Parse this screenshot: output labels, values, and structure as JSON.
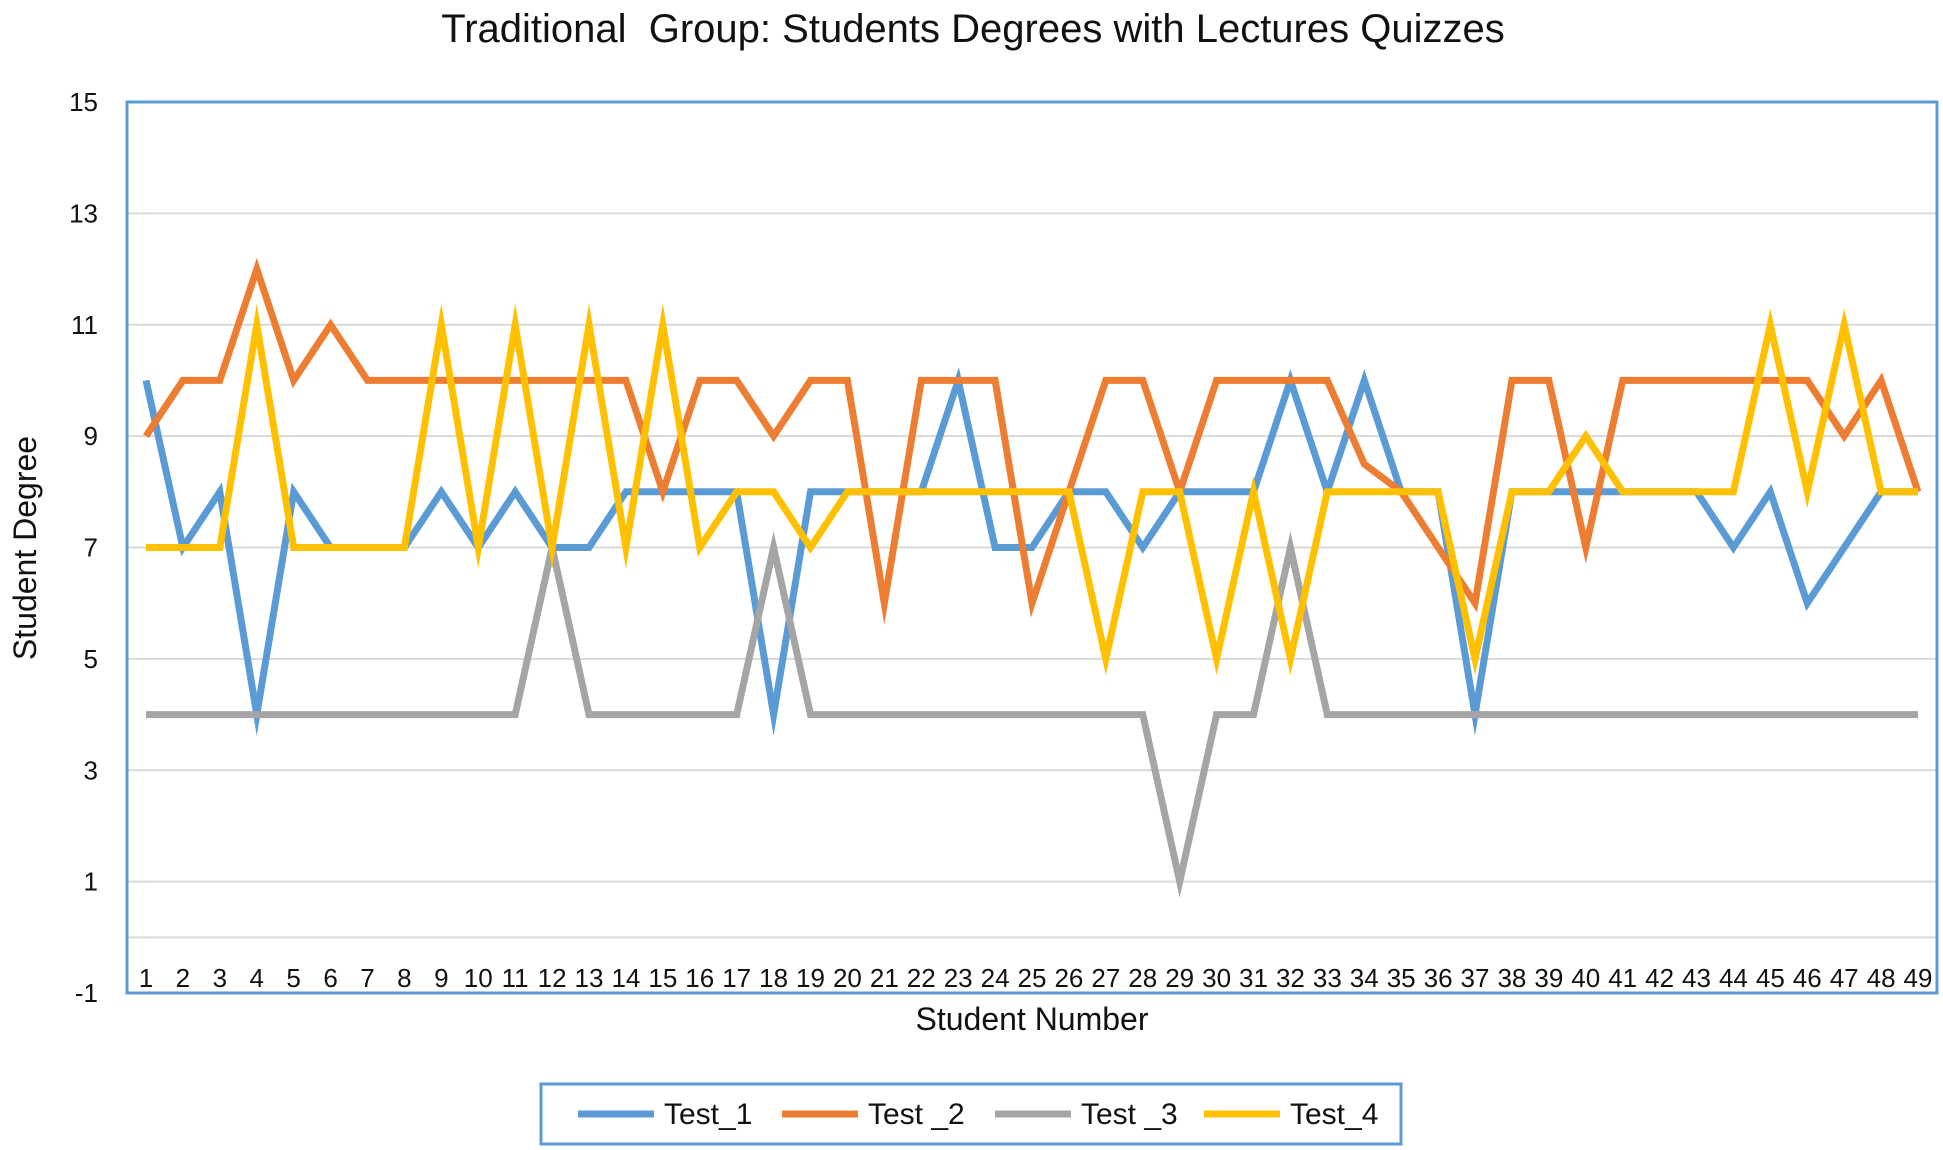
{
  "chart_data": {
    "type": "line",
    "title": "Traditional  Group: Students Degrees with Lectures Quizzes",
    "xlabel": "Student Number",
    "ylabel": "Student Degree",
    "ylim": [
      -1,
      15
    ],
    "yticks": [
      -1,
      1,
      3,
      5,
      7,
      9,
      11,
      13,
      15
    ],
    "grid": true,
    "legend_position": "bottom",
    "categories": [
      "1",
      "2",
      "3",
      "4",
      "5",
      "6",
      "7",
      "8",
      "9",
      "10",
      "11",
      "12",
      "13",
      "14",
      "15",
      "16",
      "17",
      "18",
      "19",
      "20",
      "21",
      "22",
      "23",
      "24",
      "25",
      "26",
      "27",
      "28",
      "29",
      "30",
      "31",
      "32",
      "33",
      "34",
      "35",
      "36",
      "37",
      "38",
      "39",
      "40",
      "41",
      "42",
      "43",
      "44",
      "45",
      "46",
      "47",
      "48",
      "49"
    ],
    "series": [
      {
        "name": "Test_1",
        "color": "#5B9BD5",
        "values": [
          10,
          7,
          8,
          4,
          8,
          7,
          7,
          7,
          8,
          7,
          8,
          7,
          7,
          8,
          8,
          8,
          8,
          4,
          8,
          8,
          8,
          8,
          10,
          7,
          7,
          8,
          8,
          7,
          8,
          8,
          8,
          10,
          8,
          10,
          8,
          8,
          4,
          8,
          8,
          8,
          8,
          8,
          8,
          7,
          8,
          6,
          7,
          8,
          8
        ]
      },
      {
        "name": "Test _2",
        "color": "#ED7D31",
        "values": [
          9,
          10,
          10,
          12,
          10,
          11,
          10,
          10,
          10,
          10,
          10,
          10,
          10,
          10,
          8,
          10,
          10,
          9,
          10,
          10,
          6,
          10,
          10,
          10,
          6,
          8,
          10,
          10,
          8,
          10,
          10,
          10,
          10,
          8.5,
          8,
          7,
          6,
          10,
          10,
          7,
          10,
          10,
          10,
          10,
          10,
          10,
          9,
          10,
          8
        ]
      },
      {
        "name": "Test _3",
        "color": "#A5A5A5",
        "values": [
          4,
          4,
          4,
          4,
          4,
          4,
          4,
          4,
          4,
          4,
          4,
          7,
          4,
          4,
          4,
          4,
          4,
          7,
          4,
          4,
          4,
          4,
          4,
          4,
          4,
          4,
          4,
          4,
          1,
          4,
          4,
          7,
          4,
          4,
          4,
          4,
          4,
          4,
          4,
          4,
          4,
          4,
          4,
          4,
          4,
          4,
          4,
          4,
          4
        ]
      },
      {
        "name": "Test_4",
        "color": "#FFC000",
        "values": [
          7,
          7,
          7,
          11,
          7,
          7,
          7,
          7,
          11,
          7,
          11,
          7,
          11,
          7,
          11,
          7,
          8,
          8,
          7,
          8,
          8,
          8,
          8,
          8,
          8,
          8,
          5,
          8,
          8,
          5,
          8,
          5,
          8,
          8,
          8,
          8,
          5,
          8,
          8,
          9,
          8,
          8,
          8,
          8,
          11,
          8,
          11,
          8,
          8
        ]
      }
    ]
  }
}
